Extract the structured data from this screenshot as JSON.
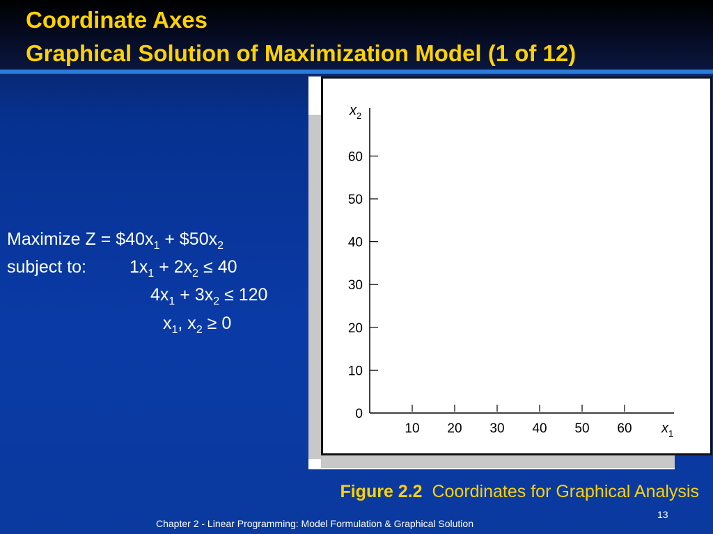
{
  "slide": {
    "title_line1": "Coordinate Axes",
    "title_line2": "Graphical Solution of Maximization Model (1 of 12)",
    "footer": "Chapter 2 - Linear Programming:  Model Formulation & Graphical Solution",
    "page_number": "13"
  },
  "model": {
    "objective_prefix": "Maximize Z = $40x",
    "objective_mid": " + $50x",
    "subject_to": "subject to:",
    "c1_a": "1x",
    "c1_b": " + 2x",
    "c1_c": " ≤ 40",
    "c2_a": "4x",
    "c2_b": " + 3x",
    "c2_c": " ≤ 120",
    "c3_a": "x",
    "c3_b": ", x",
    "c3_c": " ≥ 0",
    "sub1": "1",
    "sub2": "2"
  },
  "caption": {
    "label": "Figure 2.2",
    "text": "Coordinates for Graphical Analysis"
  },
  "chart_data": {
    "type": "scatter",
    "title": "",
    "x_axis_label": "x",
    "x_axis_sub": "1",
    "y_axis_label": "x",
    "y_axis_sub": "2",
    "xlim": [
      0,
      70
    ],
    "ylim": [
      0,
      70
    ],
    "x_ticks": [
      10,
      20,
      30,
      40,
      50,
      60
    ],
    "y_ticks": [
      0,
      10,
      20,
      30,
      40,
      50,
      60
    ],
    "grid": false,
    "series": []
  }
}
